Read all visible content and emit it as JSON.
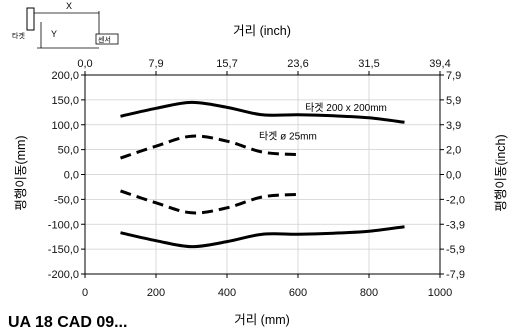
{
  "chart_data": {
    "type": "line",
    "x_bottom": {
      "label": "거리 (mm)",
      "ticks": [
        0,
        200,
        400,
        600,
        800,
        1000
      ],
      "range": [
        0,
        1000
      ]
    },
    "x_top": {
      "label": "거리 (inch)",
      "ticks": [
        "0,0",
        "7,9",
        "15,7",
        "23,6",
        "31,5",
        "39,4"
      ]
    },
    "y_left": {
      "label": "평행이동(mm)",
      "ticks": [
        "200,0",
        "150,0",
        "100,0",
        "50,0",
        "0,0",
        "-50,0",
        "-100,0",
        "-150,0",
        "-200,0"
      ],
      "range": [
        -200,
        200
      ]
    },
    "y_right": {
      "label": "평행이동(inch)",
      "ticks": [
        "7,9",
        "5,9",
        "3,9",
        "2,0",
        "0,0",
        "-2,0",
        "-3,9",
        "-5,9",
        "-7,9"
      ]
    },
    "grid": true,
    "series": [
      {
        "name": "타겟 200 x 200mm",
        "style": "solid",
        "x": [
          100,
          200,
          300,
          400,
          500,
          600,
          700,
          800,
          900
        ],
        "upper": [
          117,
          133,
          145,
          135,
          120,
          120,
          118,
          114,
          105
        ],
        "lower": [
          -117,
          -133,
          -145,
          -135,
          -120,
          -120,
          -118,
          -114,
          -105
        ]
      },
      {
        "name": "타겟  ø 25mm",
        "style": "dashed",
        "x": [
          100,
          200,
          300,
          400,
          500,
          600
        ],
        "upper": [
          33,
          57,
          77,
          67,
          45,
          40
        ],
        "lower": [
          -33,
          -57,
          -77,
          -67,
          -45,
          -40
        ]
      }
    ]
  },
  "diagram": {
    "x_label": "X",
    "y_label": "Y",
    "target_label": "타겟",
    "sensor_label": "센서"
  },
  "product_id": "UA 18 CAD 09..."
}
